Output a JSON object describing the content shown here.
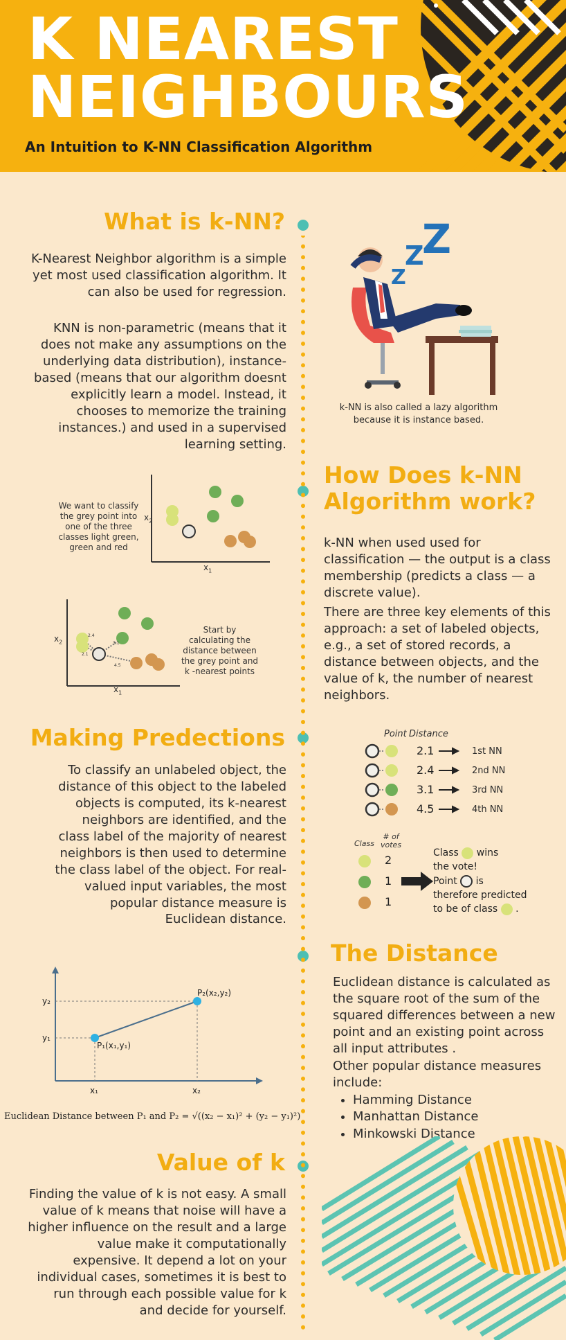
{
  "header": {
    "title_line1": "K NEAREST",
    "title_line2": "NEIGHBOURS",
    "subtitle": "An Intuition to K-NN Classification Algorithm"
  },
  "colors": {
    "header": "#f6b10f",
    "background": "#fbe8cc",
    "heading": "#f2ad12",
    "teal": "#4dbfb3",
    "light_green": "#d8e27a",
    "green": "#6fae57",
    "red": "#d39650"
  },
  "what_is": {
    "heading": "What is k-NN?",
    "para1": "K-Nearest Neighbor algorithm is a simple yet most used classification algorithm. It can also be used for regression.",
    "para2": "KNN is non-parametric (means that it does not make any assumptions on the underlying data distribution), instance-based (means that our algorithm doesnt explicitly learn a model. Instead, it chooses to memorize the training instances.) and used in a supervised learning setting.",
    "zzz": "zzZ",
    "caption": "k-NN is also called a lazy algorithm because it is instance based."
  },
  "how": {
    "heading_line1": "How Does k-NN",
    "heading_line2": "Algorithm work?",
    "para1": "k-NN when used used for classification — the output is a class membership (predicts a class — a discrete value).",
    "para2": "There are three key elements of this approach: a set of labeled objects, e.g., a set of stored records, a distance between objects, and the value of k, the number of nearest neighbors.",
    "plot1_text": "We want to classify the grey point into one of the three classes light green, green and red",
    "plot2_text": "Start by calculating the distance between the grey point and k -nearest points",
    "axis_x": "x",
    "axis_x_sub": "1",
    "axis_y": "x",
    "axis_y_sub": "2",
    "dist_labels": [
      "2.4",
      "2.1",
      "3.1",
      "4.5"
    ]
  },
  "predictions": {
    "heading": "Making Predections",
    "para": "To classify an unlabeled object, the distance of this object to the labeled objects is computed, its k-nearest neighbors are identified, and the class label of the majority of nearest neighbors is then used to determine the class label of the object. For real-valued input variables, the most popular distance measure is Euclidean distance.",
    "table_header_point": "Point",
    "table_header_distance": "Distance",
    "rows": [
      {
        "distance": "2.1",
        "rank": "1st NN"
      },
      {
        "distance": "2.4",
        "rank": "2nd NN"
      },
      {
        "distance": "3.1",
        "rank": "3rd NN"
      },
      {
        "distance": "4.5",
        "rank": "4th NN"
      }
    ],
    "votes_header_class": "Class",
    "votes_header_count_line1": "# of",
    "votes_header_count_line2": "votes",
    "votes": [
      "2",
      "1",
      "1"
    ],
    "result_class_pre": "Class",
    "result_class_post": "wins",
    "result_vote": "the vote!",
    "result_point_pre": "Point",
    "result_point_post": "is",
    "result_predicted": "therefore predicted",
    "result_class_be": "to be of class",
    "result_period": "."
  },
  "distance": {
    "heading": "The Distance",
    "para": "Euclidean distance is calculated as the square root of the sum of the squared differences between a new point and an existing point across all input attributes .",
    "others_intro": "Other popular distance measures include:",
    "measures": [
      "Hamming Distance",
      "Manhattan Distance",
      "Minkowski Distance"
    ],
    "graph_y1": "y₁",
    "graph_y2": "y₂",
    "graph_x1": "x₁",
    "graph_x2": "x₂",
    "graph_p1": "P₁(x₁,y₁)",
    "graph_p2": "P₂(x₂,y₂)",
    "formula": "Euclidean Distance between P₁ and P₂ = √((x₂ − x₁)² + (y₂ − y₁)²)"
  },
  "value_k": {
    "heading": "Value of k",
    "para": "Finding the value of k is not easy. A small value of k means that noise will have a higher influence on the result and a large value make it computationally expensive. It depend a lot on your individual cases, sometimes it is best to run through each possible value for k and decide for yourself."
  }
}
